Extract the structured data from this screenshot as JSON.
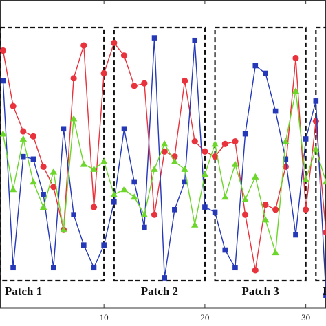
{
  "chart_data": {
    "type": "line",
    "title": "",
    "xlabel": "",
    "ylabel": "",
    "xlim": [
      -0.3,
      32
    ],
    "ylim": [
      -0.1,
      1.12
    ],
    "x_ticks": [
      10,
      20,
      30
    ],
    "x_tick_labels": [
      "10",
      "20",
      "30"
    ],
    "grid": false,
    "legend": "none",
    "series": [
      {
        "color": "#e8323c",
        "marker": "circle",
        "x": [
          0,
          1,
          2,
          3,
          4,
          5,
          6,
          7,
          8,
          9,
          10,
          11,
          12,
          13,
          14,
          15,
          16,
          17,
          18,
          19,
          20,
          21,
          22,
          23,
          24,
          25,
          26,
          27,
          28,
          29,
          30,
          31,
          32
        ],
        "y": [
          0.92,
          0.7,
          0.6,
          0.58,
          0.46,
          0.38,
          0.21,
          0.81,
          0.94,
          0.3,
          0.83,
          0.95,
          0.9,
          0.78,
          0.79,
          0.27,
          0.52,
          0.5,
          0.8,
          0.56,
          0.52,
          0.5,
          0.55,
          0.56,
          0.27,
          0.05,
          0.31,
          0.29,
          0.46,
          0.89,
          0.29,
          0.64,
          0.2
        ]
      },
      {
        "color": "#2438b8",
        "marker": "square",
        "x": [
          0,
          1,
          2,
          3,
          4,
          5,
          6,
          7,
          8,
          9,
          10,
          11,
          12,
          13,
          14,
          15,
          16,
          17,
          18,
          19,
          20,
          21,
          22,
          23,
          24,
          25,
          26,
          27,
          28,
          29,
          30,
          31,
          32
        ],
        "y": [
          0.8,
          0.06,
          0.5,
          0.49,
          0.35,
          0.06,
          0.61,
          0.27,
          0.15,
          0.06,
          0.15,
          0.32,
          0.61,
          0.4,
          0.22,
          0.97,
          0.02,
          0.29,
          0.4,
          0.96,
          0.3,
          0.28,
          0.13,
          0.06,
          0.59,
          0.86,
          0.83,
          0.68,
          0.49,
          0.19,
          0.57,
          0.72,
          -0.05
        ]
      },
      {
        "color": "#6cd62a",
        "marker": "triangle",
        "x": [
          0,
          1,
          2,
          3,
          4,
          5,
          6,
          7,
          8,
          9,
          10,
          11,
          12,
          13,
          14,
          15,
          16,
          17,
          18,
          19,
          20,
          21,
          22,
          23,
          24,
          25,
          26,
          27,
          28,
          29,
          30,
          31,
          32
        ],
        "y": [
          0.59,
          0.37,
          0.57,
          0.4,
          0.3,
          0.44,
          0.21,
          0.65,
          0.47,
          0.45,
          0.48,
          0.35,
          0.37,
          0.34,
          0.27,
          0.45,
          0.55,
          0.48,
          0.45,
          0.23,
          0.43,
          0.55,
          0.34,
          0.47,
          0.33,
          0.42,
          0.25,
          0.12,
          0.56,
          0.76,
          0.41,
          0.53,
          0.4
        ]
      }
    ],
    "annotations": [
      {
        "label": "Patch 1",
        "x_range": [
          -0.3,
          10.0
        ]
      },
      {
        "label": "Patch 2",
        "x_range": [
          11.0,
          20.0
        ]
      },
      {
        "label": "Patch 3",
        "x_range": [
          21.0,
          30.0
        ]
      },
      {
        "label": "Patc",
        "x_range": [
          31.0,
          32.5
        ]
      }
    ]
  }
}
